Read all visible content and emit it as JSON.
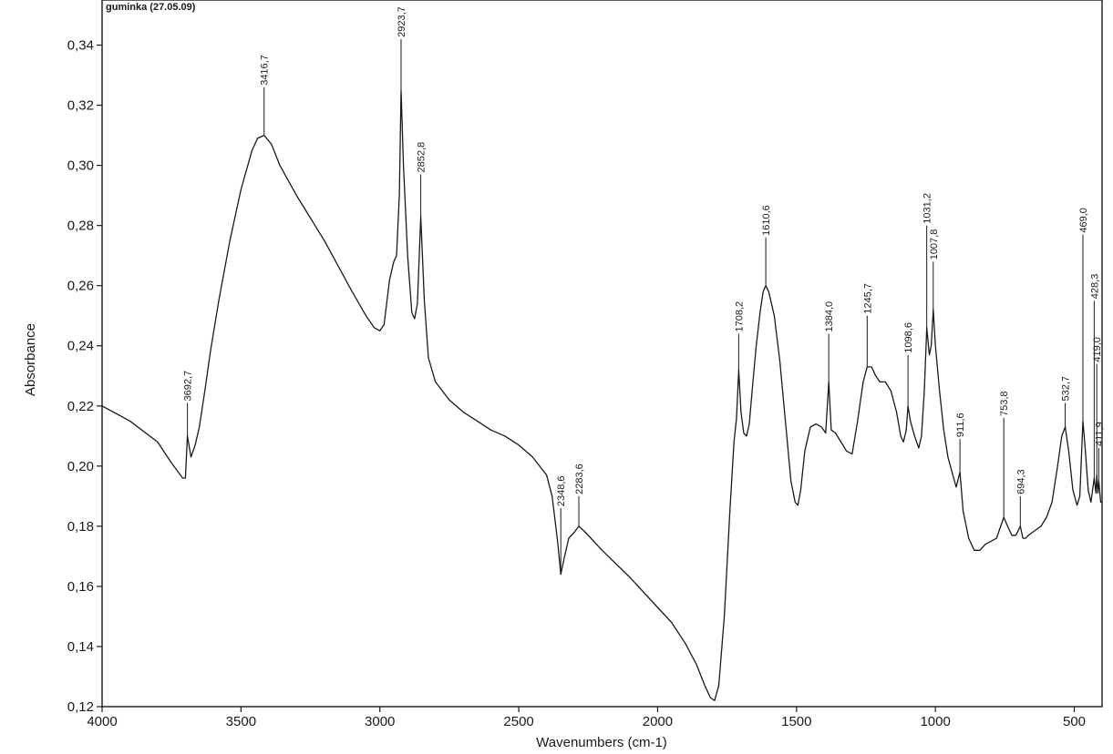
{
  "chart_data": {
    "type": "line",
    "title": "guminka (27.05.09)",
    "xlabel": "Wavenumbers (cm-1)",
    "ylabel": "Absorbance",
    "xlim": [
      4000,
      400
    ],
    "ylim": [
      0.12,
      0.355
    ],
    "x_reversed": true,
    "grid": false,
    "x_ticks": [
      4000,
      3500,
      3000,
      2500,
      2000,
      1500,
      1000,
      500
    ],
    "x_tick_labels": [
      "4000",
      "3500",
      "3000",
      "2500",
      "2000",
      "1500",
      "1000",
      "500"
    ],
    "y_ticks": [
      0.12,
      0.14,
      0.16,
      0.18,
      0.2,
      0.22,
      0.24,
      0.26,
      0.28,
      0.3,
      0.32,
      0.34
    ],
    "y_tick_labels": [
      "0,12",
      "0,14",
      "0,16",
      "0,18",
      "0,20",
      "0,22",
      "0,24",
      "0,26",
      "0,28",
      "0,30",
      "0,32",
      "0,34"
    ],
    "series": [
      {
        "color": "#1a1a1a",
        "points": [
          [
            4000,
            0.22
          ],
          [
            3900,
            0.215
          ],
          [
            3800,
            0.208
          ],
          [
            3750,
            0.201
          ],
          [
            3710,
            0.196
          ],
          [
            3700,
            0.196
          ],
          [
            3692.7,
            0.21
          ],
          [
            3680,
            0.203
          ],
          [
            3665,
            0.207
          ],
          [
            3650,
            0.213
          ],
          [
            3630,
            0.225
          ],
          [
            3610,
            0.238
          ],
          [
            3580,
            0.255
          ],
          [
            3540,
            0.275
          ],
          [
            3500,
            0.292
          ],
          [
            3460,
            0.305
          ],
          [
            3440,
            0.309
          ],
          [
            3416.7,
            0.31
          ],
          [
            3390,
            0.307
          ],
          [
            3360,
            0.3
          ],
          [
            3300,
            0.29
          ],
          [
            3200,
            0.275
          ],
          [
            3100,
            0.258
          ],
          [
            3050,
            0.25
          ],
          [
            3020,
            0.246
          ],
          [
            3000,
            0.245
          ],
          [
            2985,
            0.247
          ],
          [
            2965,
            0.262
          ],
          [
            2950,
            0.268
          ],
          [
            2940,
            0.27
          ],
          [
            2930,
            0.29
          ],
          [
            2923.7,
            0.325
          ],
          [
            2915,
            0.3
          ],
          [
            2900,
            0.27
          ],
          [
            2885,
            0.251
          ],
          [
            2875,
            0.249
          ],
          [
            2865,
            0.254
          ],
          [
            2852.8,
            0.283
          ],
          [
            2840,
            0.255
          ],
          [
            2825,
            0.236
          ],
          [
            2800,
            0.228
          ],
          [
            2750,
            0.222
          ],
          [
            2700,
            0.218
          ],
          [
            2650,
            0.215
          ],
          [
            2600,
            0.212
          ],
          [
            2550,
            0.21
          ],
          [
            2500,
            0.207
          ],
          [
            2450,
            0.203
          ],
          [
            2400,
            0.197
          ],
          [
            2380,
            0.19
          ],
          [
            2360,
            0.175
          ],
          [
            2348.6,
            0.164
          ],
          [
            2335,
            0.17
          ],
          [
            2320,
            0.176
          ],
          [
            2300,
            0.178
          ],
          [
            2283.6,
            0.18
          ],
          [
            2260,
            0.178
          ],
          [
            2200,
            0.172
          ],
          [
            2100,
            0.163
          ],
          [
            2000,
            0.153
          ],
          [
            1950,
            0.148
          ],
          [
            1900,
            0.141
          ],
          [
            1860,
            0.134
          ],
          [
            1830,
            0.127
          ],
          [
            1810,
            0.123
          ],
          [
            1795,
            0.122
          ],
          [
            1780,
            0.127
          ],
          [
            1760,
            0.15
          ],
          [
            1740,
            0.185
          ],
          [
            1725,
            0.208
          ],
          [
            1716,
            0.216
          ],
          [
            1708.2,
            0.232
          ],
          [
            1700,
            0.218
          ],
          [
            1690,
            0.211
          ],
          [
            1680,
            0.21
          ],
          [
            1670,
            0.214
          ],
          [
            1660,
            0.225
          ],
          [
            1645,
            0.24
          ],
          [
            1630,
            0.252
          ],
          [
            1620,
            0.258
          ],
          [
            1610.6,
            0.26
          ],
          [
            1600,
            0.258
          ],
          [
            1580,
            0.25
          ],
          [
            1560,
            0.235
          ],
          [
            1540,
            0.215
          ],
          [
            1520,
            0.195
          ],
          [
            1505,
            0.188
          ],
          [
            1495,
            0.187
          ],
          [
            1485,
            0.192
          ],
          [
            1470,
            0.205
          ],
          [
            1450,
            0.213
          ],
          [
            1430,
            0.214
          ],
          [
            1410,
            0.213
          ],
          [
            1395,
            0.211
          ],
          [
            1384,
            0.228
          ],
          [
            1375,
            0.212
          ],
          [
            1360,
            0.211
          ],
          [
            1340,
            0.208
          ],
          [
            1320,
            0.205
          ],
          [
            1300,
            0.204
          ],
          [
            1280,
            0.215
          ],
          [
            1260,
            0.228
          ],
          [
            1245.7,
            0.233
          ],
          [
            1230,
            0.233
          ],
          [
            1215,
            0.23
          ],
          [
            1200,
            0.228
          ],
          [
            1180,
            0.228
          ],
          [
            1160,
            0.225
          ],
          [
            1140,
            0.218
          ],
          [
            1125,
            0.21
          ],
          [
            1115,
            0.208
          ],
          [
            1105,
            0.212
          ],
          [
            1098.6,
            0.22
          ],
          [
            1090,
            0.215
          ],
          [
            1075,
            0.21
          ],
          [
            1060,
            0.206
          ],
          [
            1050,
            0.21
          ],
          [
            1040,
            0.225
          ],
          [
            1031.2,
            0.246
          ],
          [
            1022,
            0.237
          ],
          [
            1015,
            0.24
          ],
          [
            1007.8,
            0.252
          ],
          [
            1000,
            0.24
          ],
          [
            985,
            0.225
          ],
          [
            970,
            0.212
          ],
          [
            955,
            0.203
          ],
          [
            940,
            0.198
          ],
          [
            925,
            0.193
          ],
          [
            911.6,
            0.198
          ],
          [
            900,
            0.185
          ],
          [
            880,
            0.176
          ],
          [
            860,
            0.172
          ],
          [
            840,
            0.172
          ],
          [
            820,
            0.174
          ],
          [
            800,
            0.175
          ],
          [
            780,
            0.176
          ],
          [
            765,
            0.18
          ],
          [
            753.8,
            0.183
          ],
          [
            740,
            0.18
          ],
          [
            725,
            0.177
          ],
          [
            710,
            0.177
          ],
          [
            694.3,
            0.18
          ],
          [
            685,
            0.176
          ],
          [
            675,
            0.176
          ],
          [
            665,
            0.177
          ],
          [
            650,
            0.178
          ],
          [
            620,
            0.18
          ],
          [
            600,
            0.183
          ],
          [
            580,
            0.188
          ],
          [
            560,
            0.2
          ],
          [
            545,
            0.21
          ],
          [
            532.7,
            0.213
          ],
          [
            520,
            0.205
          ],
          [
            505,
            0.192
          ],
          [
            490,
            0.187
          ],
          [
            480,
            0.19
          ],
          [
            469,
            0.215
          ],
          [
            460,
            0.205
          ],
          [
            450,
            0.192
          ],
          [
            440,
            0.188
          ],
          [
            428.3,
            0.196
          ],
          [
            422,
            0.191
          ],
          [
            419,
            0.197
          ],
          [
            415,
            0.191
          ],
          [
            411.9,
            0.195
          ],
          [
            405,
            0.188
          ],
          [
            400,
            0.188
          ]
        ]
      }
    ],
    "peaks": [
      {
        "label": "3692,7",
        "x": 3692.7,
        "y": 0.21,
        "text_y": 0.221
      },
      {
        "label": "3416,7",
        "x": 3416.7,
        "y": 0.31,
        "text_y": 0.326
      },
      {
        "label": "2923,7",
        "x": 2923.7,
        "y": 0.325,
        "text_y": 0.342
      },
      {
        "label": "2852,8",
        "x": 2852.8,
        "y": 0.283,
        "text_y": 0.297
      },
      {
        "label": "2348,6",
        "x": 2348.6,
        "y": 0.164,
        "text_y": 0.186
      },
      {
        "label": "2283,6",
        "x": 2283.6,
        "y": 0.18,
        "text_y": 0.19
      },
      {
        "label": "1708,2",
        "x": 1708.2,
        "y": 0.232,
        "text_y": 0.244
      },
      {
        "label": "1610,6",
        "x": 1610.6,
        "y": 0.26,
        "text_y": 0.276
      },
      {
        "label": "1384,0",
        "x": 1384,
        "y": 0.228,
        "text_y": 0.244
      },
      {
        "label": "1245,7",
        "x": 1245.7,
        "y": 0.233,
        "text_y": 0.25
      },
      {
        "label": "1098,6",
        "x": 1098.6,
        "y": 0.22,
        "text_y": 0.237
      },
      {
        "label": "1031,2",
        "x": 1031.2,
        "y": 0.246,
        "text_y": 0.28
      },
      {
        "label": "1007,8",
        "x": 1007.8,
        "y": 0.252,
        "text_y": 0.268
      },
      {
        "label": "911,6",
        "x": 911.6,
        "y": 0.198,
        "text_y": 0.209
      },
      {
        "label": "753,8",
        "x": 753.8,
        "y": 0.183,
        "text_y": 0.216
      },
      {
        "label": "694,3",
        "x": 694.3,
        "y": 0.18,
        "text_y": 0.19
      },
      {
        "label": "532,7",
        "x": 532.7,
        "y": 0.213,
        "text_y": 0.221
      },
      {
        "label": "469,0",
        "x": 469,
        "y": 0.215,
        "text_y": 0.277
      },
      {
        "label": "428,3",
        "x": 428.3,
        "y": 0.196,
        "text_y": 0.255
      },
      {
        "label": "419,0",
        "x": 419,
        "y": 0.197,
        "text_y": 0.234
      },
      {
        "label": "411,9",
        "x": 411.9,
        "y": 0.195,
        "text_y": 0.206
      }
    ]
  }
}
